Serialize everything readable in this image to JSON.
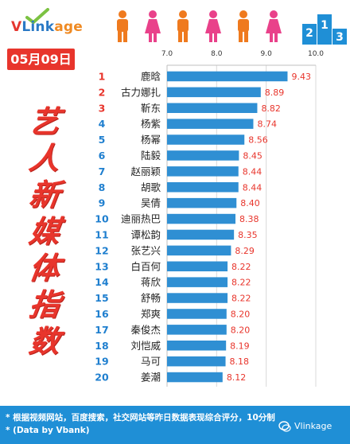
{
  "brand": {
    "logo_text": [
      "V",
      "Link",
      "age"
    ],
    "colors": {
      "red": "#e5362f",
      "blue": "#2a79c5",
      "orange": "#ef8a23"
    }
  },
  "header": {
    "people_icons": [
      "male-icon",
      "female-icon",
      "male-icon",
      "female-icon",
      "male-icon",
      "female-icon"
    ],
    "people_colors": {
      "male": "#ef7a1e",
      "female": "#e9418a"
    },
    "podium_labels": [
      "2",
      "1",
      "3"
    ],
    "podium_color": "#1f8fd6"
  },
  "date_label": "05月09日",
  "title_chars": [
    "艺",
    "人",
    "新",
    "媒",
    "体",
    "指",
    "数"
  ],
  "chart_data": {
    "type": "bar",
    "orientation": "horizontal",
    "categories": [
      "鹿晗",
      "古力娜扎",
      "靳东",
      "杨紫",
      "杨幂",
      "陆毅",
      "赵丽颖",
      "胡歌",
      "吴倩",
      "迪丽热巴",
      "谭松韵",
      "张艺兴",
      "白百何",
      "蒋欣",
      "舒畅",
      "郑爽",
      "秦俊杰",
      "刘恺威",
      "马可",
      "姜潮"
    ],
    "ranks": [
      "1",
      "2",
      "3",
      "4",
      "5",
      "6",
      "7",
      "8",
      "9",
      "10",
      "11",
      "12",
      "13",
      "14",
      "15",
      "16",
      "17",
      "18",
      "19",
      "20"
    ],
    "values": [
      9.43,
      8.89,
      8.82,
      8.74,
      8.56,
      8.45,
      8.44,
      8.44,
      8.4,
      8.38,
      8.35,
      8.29,
      8.22,
      8.22,
      8.22,
      8.2,
      8.2,
      8.19,
      8.18,
      8.12
    ],
    "value_labels": [
      "9.43",
      "8.89",
      "8.82",
      "8.74",
      "8.56",
      "8.45",
      "8.44",
      "8.44",
      "8.40",
      "8.38",
      "8.35",
      "8.29",
      "8.22",
      "8.22",
      "8.22",
      "8.20",
      "8.20",
      "8.19",
      "8.18",
      "8.12"
    ],
    "xlim": [
      7.0,
      10.0
    ],
    "xticks": [
      "7.0",
      "8.0",
      "9.0",
      "10.0"
    ],
    "bar_color": "#2f8fd3",
    "top_rank_color": "#e8352c",
    "rank_color": "#1f7fcf",
    "value_color": "#e8352c",
    "grid": true
  },
  "footer": {
    "note": "* 根据视频网站，百度搜索，社交网站等昨日数据表现综合评分，10分制",
    "source": "* (Data by Vbank)",
    "watermark": "Vlinkage"
  }
}
